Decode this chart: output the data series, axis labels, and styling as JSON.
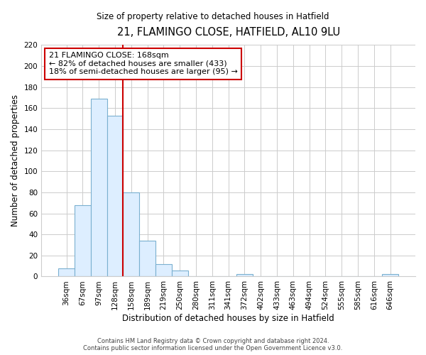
{
  "title": "21, FLAMINGO CLOSE, HATFIELD, AL10 9LU",
  "subtitle": "Size of property relative to detached houses in Hatfield",
  "xlabel": "Distribution of detached houses by size in Hatfield",
  "ylabel": "Number of detached properties",
  "bar_labels": [
    "36sqm",
    "67sqm",
    "97sqm",
    "128sqm",
    "158sqm",
    "189sqm",
    "219sqm",
    "250sqm",
    "280sqm",
    "311sqm",
    "341sqm",
    "372sqm",
    "402sqm",
    "433sqm",
    "463sqm",
    "494sqm",
    "524sqm",
    "555sqm",
    "585sqm",
    "616sqm",
    "646sqm"
  ],
  "bar_values": [
    8,
    68,
    169,
    153,
    80,
    34,
    12,
    6,
    0,
    0,
    0,
    2,
    0,
    0,
    0,
    0,
    0,
    0,
    0,
    0,
    2
  ],
  "bar_color": "#ddeeff",
  "bar_edge_color": "#7ab0d0",
  "ylim": [
    0,
    220
  ],
  "yticks": [
    0,
    20,
    40,
    60,
    80,
    100,
    120,
    140,
    160,
    180,
    200,
    220
  ],
  "annotation_title": "21 FLAMINGO CLOSE: 168sqm",
  "annotation_line1": "← 82% of detached houses are smaller (433)",
  "annotation_line2": "18% of semi-detached houses are larger (95) →",
  "annotation_box_color": "#ffffff",
  "annotation_box_edge": "#cc0000",
  "property_line_color": "#cc0000",
  "property_line_xindex": 4,
  "footer1": "Contains HM Land Registry data © Crown copyright and database right 2024.",
  "footer2": "Contains public sector information licensed under the Open Government Licence v3.0.",
  "background_color": "#ffffff",
  "plot_bg_color": "#ffffff",
  "grid_color": "#cccccc"
}
